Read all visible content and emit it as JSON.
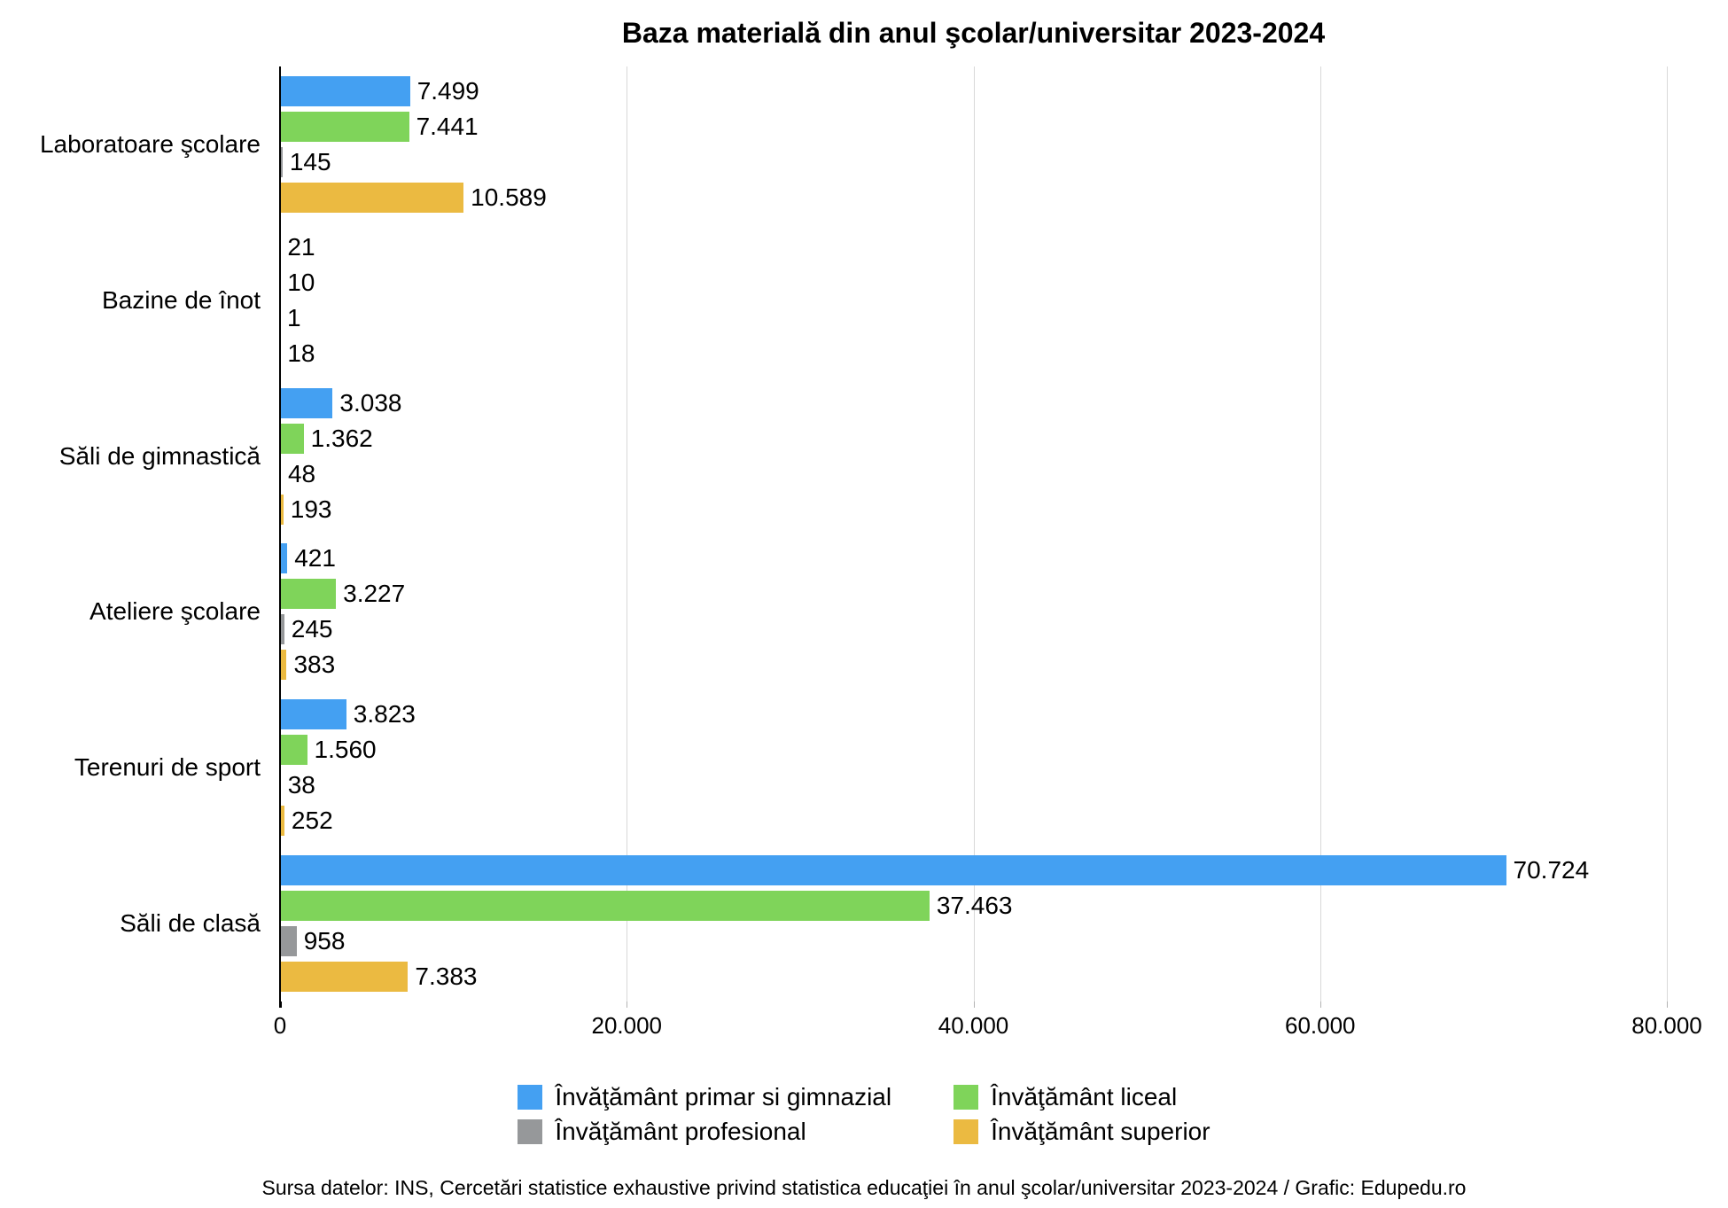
{
  "title": "Baza materială din anul şcolar/universitar 2023-2024",
  "chart_data": {
    "type": "bar",
    "orientation": "horizontal",
    "title": "Baza materială din anul şcolar/universitar 2023-2024",
    "categories": [
      "Laboratoare şcolare",
      "Bazine de înot",
      "Săli de gimnastică",
      "Ateliere şcolare",
      "Terenuri de sport",
      "Săli de clasă"
    ],
    "series": [
      {
        "name": "Învăţământ primar si gimnazial",
        "color": "#44a0f2",
        "values": [
          7499,
          21,
          3038,
          421,
          3823,
          70724
        ],
        "labels": [
          "7.499",
          "21",
          "3.038",
          "421",
          "3.823",
          "70.724"
        ]
      },
      {
        "name": "Învăţământ liceal",
        "color": "#7fd45a",
        "values": [
          7441,
          10,
          1362,
          3227,
          1560,
          37463
        ],
        "labels": [
          "7.441",
          "10",
          "1.362",
          "3.227",
          "1.560",
          "37.463"
        ]
      },
      {
        "name": "Învăţământ profesional",
        "color": "#96989a",
        "values": [
          145,
          1,
          48,
          245,
          38,
          958
        ],
        "labels": [
          "145",
          "1",
          "48",
          "245",
          "38",
          "958"
        ]
      },
      {
        "name": "Învăţământ superior",
        "color": "#ebba41",
        "values": [
          10589,
          18,
          193,
          383,
          252,
          7383
        ],
        "labels": [
          "10.589",
          "18",
          "193",
          "383",
          "252",
          "7.383"
        ]
      }
    ],
    "xlim": [
      0,
      80000
    ],
    "x_ticks": [
      {
        "value": 0,
        "label": "0"
      },
      {
        "value": 20000,
        "label": "20.000"
      },
      {
        "value": 40000,
        "label": "40.000"
      },
      {
        "value": 60000,
        "label": "60.000"
      },
      {
        "value": 80000,
        "label": "80.000"
      }
    ],
    "grid": true,
    "legend_position": "bottom",
    "axis_color": "#000000",
    "grid_color": "#d9d9d9"
  },
  "footer": {
    "source": "Sursa datelor: INS, Cercetări statistice exhaustive privind statistica educaţiei în anul şcolar/universitar 2023-2024 / Grafic: Edupedu.ro"
  }
}
